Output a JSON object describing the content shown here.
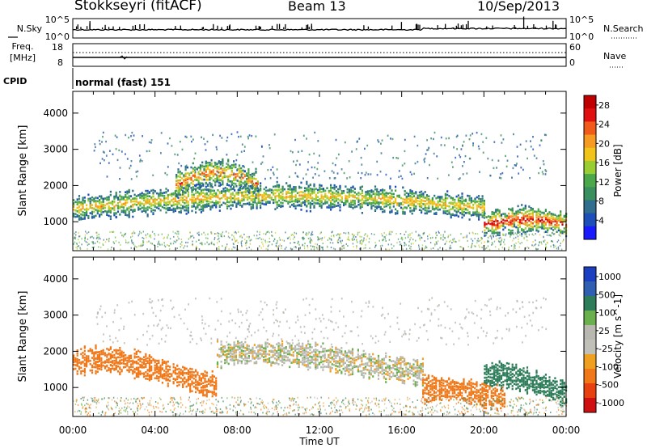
{
  "header": {
    "station": "Stokkseyri (fitACF)",
    "beam": "Beam 13",
    "date": "10/Sep/2013"
  },
  "summary_panels": {
    "nsky_label": "N.Sky",
    "nsky_ticks": [
      "10^5",
      "10^0"
    ],
    "nsearch_label": "N.Search",
    "nsearch_ticks": [
      "10^5",
      "10^0"
    ],
    "freq_label_1": "Freq.",
    "freq_label_2": "[MHz]",
    "freq_ticks": [
      "18",
      "8"
    ],
    "nave_label": "Nave",
    "nave_ticks": [
      "60",
      "0"
    ],
    "cpid_label": "CPID",
    "cpid_value": "normal (fast) 151"
  },
  "colors": {
    "power_scale": [
      "#1a1aff",
      "#1c4fb8",
      "#2f6e8c",
      "#3a8f5e",
      "#4aa84a",
      "#9acd32",
      "#f0c419",
      "#f59a23",
      "#f05a1a",
      "#e01010",
      "#c00000"
    ],
    "velocity_scale": [
      "#1a3fc0",
      "#2e5fb0",
      "#2e7d5a",
      "#6ab04c",
      "#b8b8b0",
      "#c0c0b8",
      "#f0a020",
      "#f07818",
      "#e84010",
      "#d01010"
    ],
    "ground_scatter": "#b8b8b0"
  },
  "chart_data": [
    {
      "type": "heatmap",
      "title": "",
      "xlabel": "Time UT",
      "ylabel": "Slant Range [km]",
      "xlim_hours": [
        0,
        24
      ],
      "x_tick_labels": [
        "00:00",
        "04:00",
        "08:00",
        "12:00",
        "16:00",
        "20:00",
        "00:00"
      ],
      "ylim": [
        200,
        4600
      ],
      "y_ticks": [
        1000,
        2000,
        3000,
        4000
      ],
      "colorbar": {
        "label": "Power [dB]",
        "ticks": [
          "4",
          "8",
          "12",
          "16",
          "20",
          "24",
          "28"
        ],
        "range": [
          0,
          30
        ]
      },
      "features": [
        {
          "time_hours": [
            0,
            20
          ],
          "range_km_center": [
            1050,
            1750
          ],
          "value_db": 20
        },
        {
          "time_hours": [
            5,
            9
          ],
          "range_km_center": [
            1700,
            2400
          ],
          "value_db": 24
        },
        {
          "time_hours": [
            20,
            24
          ],
          "range_km_center": [
            800,
            1100
          ],
          "value_db": 28
        }
      ]
    },
    {
      "type": "heatmap",
      "title": "",
      "xlabel": "Time UT",
      "ylabel": "Slant Range [km]",
      "xlim_hours": [
        0,
        24
      ],
      "x_tick_labels": [
        "00:00",
        "04:00",
        "08:00",
        "12:00",
        "16:00",
        "20:00",
        "00:00"
      ],
      "ylim": [
        200,
        4600
      ],
      "y_ticks": [
        1000,
        2000,
        3000,
        4000
      ],
      "colorbar": {
        "label": "Velocity [m s^-1]",
        "ticks": [
          "1000",
          "500",
          "100",
          "25",
          "-25",
          "-100",
          "-500",
          "-1000"
        ]
      },
      "features": [
        {
          "time_hours": [
            0,
            7
          ],
          "range_km_center": [
            1000,
            1800
          ],
          "velocity": -300
        },
        {
          "time_hours": [
            7,
            17
          ],
          "range_km_center": [
            1400,
            2000
          ],
          "velocity": 0
        },
        {
          "time_hours": [
            17,
            21
          ],
          "range_km_center": [
            700,
            1000
          ],
          "velocity": -400
        },
        {
          "time_hours": [
            20,
            24
          ],
          "range_km_center": [
            800,
            1400
          ],
          "velocity": 300
        }
      ]
    }
  ]
}
